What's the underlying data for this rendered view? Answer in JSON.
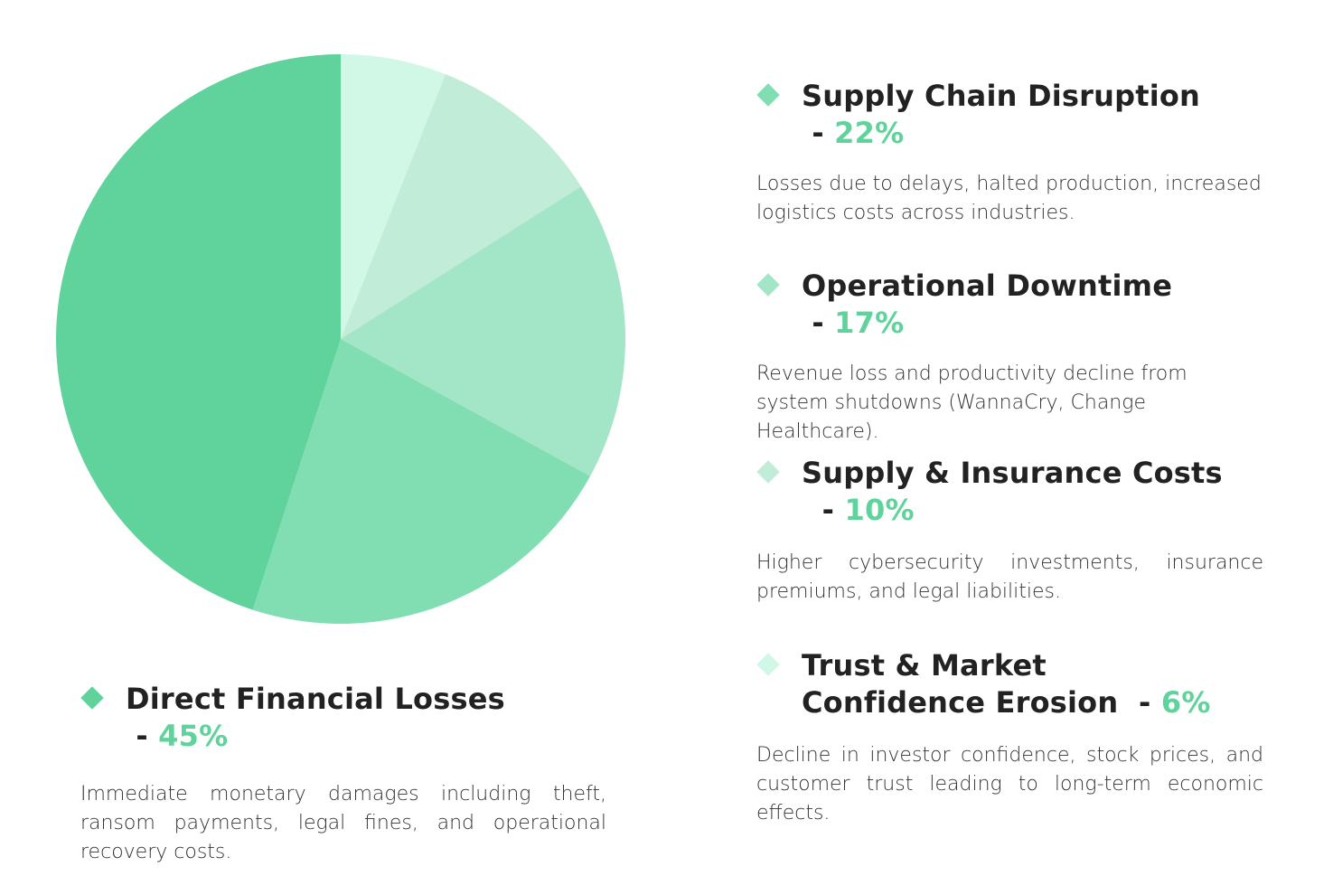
{
  "chart_data": {
    "type": "pie",
    "title": "",
    "slices": [
      {
        "label": "Trust & Market Confidence Erosion",
        "value": 6,
        "color": "#d1f7e6"
      },
      {
        "label": "Supply & Insurance Costs",
        "value": 10,
        "color": "#c1ecd8"
      },
      {
        "label": "Operational Downtime",
        "value": 17,
        "color": "#a3e5c7"
      },
      {
        "label": "Supply Chain Disruption",
        "value": 22,
        "color": "#81ddb2"
      },
      {
        "label": "Direct Financial Losses",
        "value": 45,
        "color": "#5fd39b"
      }
    ],
    "start": "top",
    "direction": "clockwise"
  },
  "legend": [
    {
      "title": "Direct Financial Losses",
      "sep": " - ",
      "pct": "45%",
      "color": "#5fd39b",
      "desc": "Immediate monetary damages including theft, ransom payments, legal fines, and operational recovery costs."
    },
    {
      "title": "Supply Chain Disruption",
      "sep": " - ",
      "pct": "22%",
      "color": "#81ddb2",
      "desc": "Losses due to delays, halted production, increased logistics costs across industries."
    },
    {
      "title": "Operational Downtime",
      "sep": " - ",
      "pct": "17%",
      "color": "#a3e5c7",
      "desc": "Revenue loss and productivity decline from system shutdowns (WannaCry, Change Healthcare)."
    },
    {
      "title": "Supply & Insurance Costs",
      "sep": "  - ",
      "pct": "10%",
      "color": "#c1ecd8",
      "desc": "Higher cybersecurity investments, insurance premiums, and legal liabilities."
    },
    {
      "title": "Trust & Market Confidence Erosion",
      "sep": "  - ",
      "pct": "6%",
      "color": "#d1f7e6",
      "desc": "Decline in investor confidence, stock prices, and customer trust leading to long-term economic effects."
    }
  ],
  "legend_line2": [
    "Trust & Market",
    "Confidence Erosion"
  ]
}
